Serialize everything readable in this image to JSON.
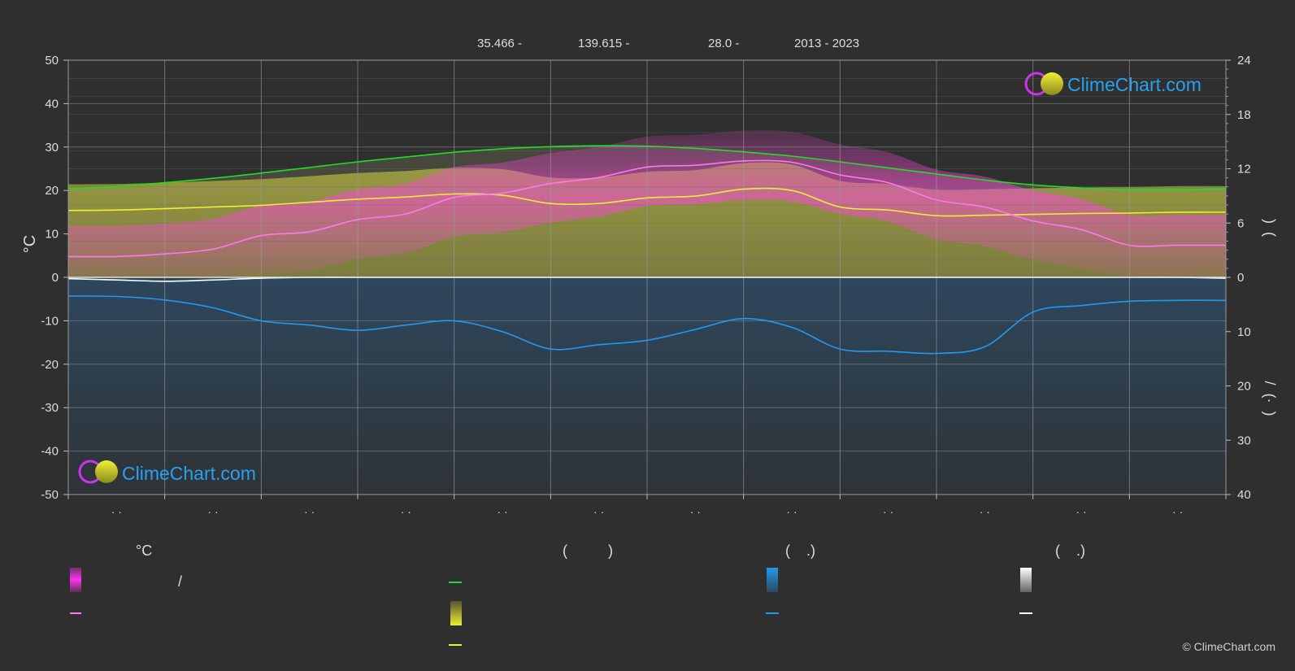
{
  "header": {
    "latitude": "35.466 -",
    "longitude": "139.615 -",
    "elevation": "28.0 -",
    "years": "2013 - 2023"
  },
  "chart_data": {
    "type": "area",
    "left_axis": {
      "label": "°C",
      "ylim": [
        -50,
        50
      ],
      "ticks": [
        "50",
        "40",
        "30",
        "20",
        "10",
        "0",
        "-10",
        "-20",
        "-30",
        "-40",
        "-50"
      ]
    },
    "right_axis_upper": {
      "ticks": [
        "24",
        "18",
        "12",
        "6",
        "0"
      ],
      "range": [
        0,
        24
      ],
      "label_glyphs": ")  ("
    },
    "right_axis_lower": {
      "ticks": [
        "10",
        "20",
        "30",
        "40"
      ],
      "range": [
        0,
        40
      ],
      "label_glyphs": "/  (·  )"
    },
    "month_tick_labels": [
      "· ·",
      "· ·",
      "· ·",
      "· ·",
      "· ·",
      "· ·",
      "· ·",
      "· ·",
      "· ·",
      "· ·",
      "· ·",
      "· ·"
    ],
    "grid": true,
    "x": [
      0,
      0.5,
      1,
      1.5,
      2,
      2.5,
      3,
      3.5,
      4,
      4.5,
      5,
      5.5,
      6,
      6.5,
      7,
      7.5,
      8,
      8.5,
      9,
      9.5,
      10,
      10.5,
      11,
      11.5,
      12
    ],
    "series": [
      {
        "key": "daylight",
        "color": "#22dd22",
        "values": [
          20.4,
          20.9,
          21.8,
          22.8,
          24.0,
          25.3,
          26.6,
          27.7,
          28.8,
          29.6,
          30.1,
          30.3,
          30.2,
          29.7,
          28.9,
          27.9,
          26.6,
          25.2,
          23.8,
          22.4,
          21.3,
          20.6,
          20.2,
          20.2,
          20.4
        ]
      },
      {
        "key": "sunshine",
        "color": "#eeee33",
        "values": [
          15.4,
          15.5,
          15.8,
          16.2,
          16.6,
          17.3,
          18.0,
          18.5,
          19.2,
          18.9,
          17.0,
          17.0,
          18.3,
          18.7,
          20.3,
          20.0,
          16.2,
          15.5,
          14.2,
          14.3,
          14.5,
          14.7,
          14.8,
          15.0,
          15.0
        ]
      },
      {
        "key": "temperature",
        "color": "#ff77ee",
        "values": [
          4.8,
          4.8,
          5.4,
          6.5,
          9.6,
          10.5,
          13.3,
          14.6,
          18.4,
          19.4,
          21.6,
          23.0,
          25.4,
          25.8,
          26.8,
          26.5,
          23.6,
          21.8,
          17.8,
          16.2,
          13.0,
          11.0,
          7.4,
          7.4,
          7.4
        ]
      },
      {
        "key": "precipitation",
        "color": "#2299ee",
        "values": [
          -4.3,
          -4.4,
          -5.2,
          -7.0,
          -10.0,
          -11.0,
          -12.2,
          -11.0,
          -10.0,
          -12.5,
          -16.5,
          -15.5,
          -14.5,
          -12.0,
          -9.5,
          -11.5,
          -16.5,
          -17.0,
          -17.5,
          -16.0,
          -8.0,
          -6.5,
          -5.5,
          -5.3,
          -5.3
        ]
      },
      {
        "key": "snow",
        "color": "#ffffff",
        "values": [
          -0.3,
          -0.6,
          -0.9,
          -0.6,
          -0.2,
          0,
          0,
          0,
          0,
          0,
          0,
          0,
          0,
          0,
          0,
          0,
          0,
          0,
          0,
          0,
          0,
          0,
          0,
          0,
          -0.2
        ]
      }
    ]
  },
  "legend": {
    "col1_header": "°C",
    "col1_slash": "/",
    "col2_header": "(          )",
    "col3_header": "(    .)",
    "col4_header": "(    .)"
  },
  "brand": {
    "name": "ClimeChart.com",
    "copyright": "© ClimeChart.com",
    "text_color": "#2aa0f0"
  }
}
